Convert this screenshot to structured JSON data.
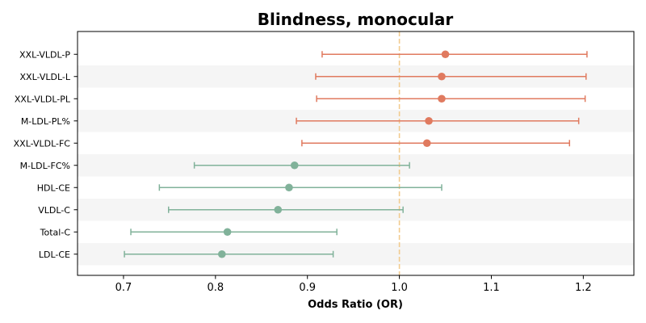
{
  "chart_data": {
    "type": "forest",
    "title": "Blindness, monocular",
    "xlabel": "Odds Ratio (OR)",
    "ylabel": "",
    "xlim": [
      0.65,
      1.255
    ],
    "xticks": [
      0.7,
      0.8,
      0.9,
      1.0,
      1.1,
      1.2
    ],
    "xtick_labels": [
      "0.7",
      "0.8",
      "0.9",
      "1.0",
      "1.1",
      "1.2"
    ],
    "reference_line": 1.0,
    "colors": {
      "increase": "#E07A5F",
      "decrease": "#81B29A",
      "reference": "#F2CC8F",
      "band": "#F5F5F5"
    },
    "items": [
      {
        "label": "XXL-VLDL-P",
        "or": 1.05,
        "lower": 0.916,
        "upper": 1.204
      },
      {
        "label": "XXL-VLDL-L",
        "or": 1.046,
        "lower": 0.909,
        "upper": 1.203
      },
      {
        "label": "XXL-VLDL-PL",
        "or": 1.046,
        "lower": 0.91,
        "upper": 1.202
      },
      {
        "label": "M-LDL-PL%",
        "or": 1.032,
        "lower": 0.888,
        "upper": 1.195
      },
      {
        "label": "XXL-VLDL-FC",
        "or": 1.03,
        "lower": 0.894,
        "upper": 1.185
      },
      {
        "label": "M-LDL-FC%",
        "or": 0.886,
        "lower": 0.777,
        "upper": 1.011
      },
      {
        "label": "HDL-CE",
        "or": 0.88,
        "lower": 0.739,
        "upper": 1.046
      },
      {
        "label": "VLDL-C",
        "or": 0.868,
        "lower": 0.749,
        "upper": 1.004
      },
      {
        "label": "Total-C",
        "or": 0.813,
        "lower": 0.708,
        "upper": 0.932
      },
      {
        "label": "LDL-CE",
        "or": 0.807,
        "lower": 0.701,
        "upper": 0.928
      }
    ]
  }
}
